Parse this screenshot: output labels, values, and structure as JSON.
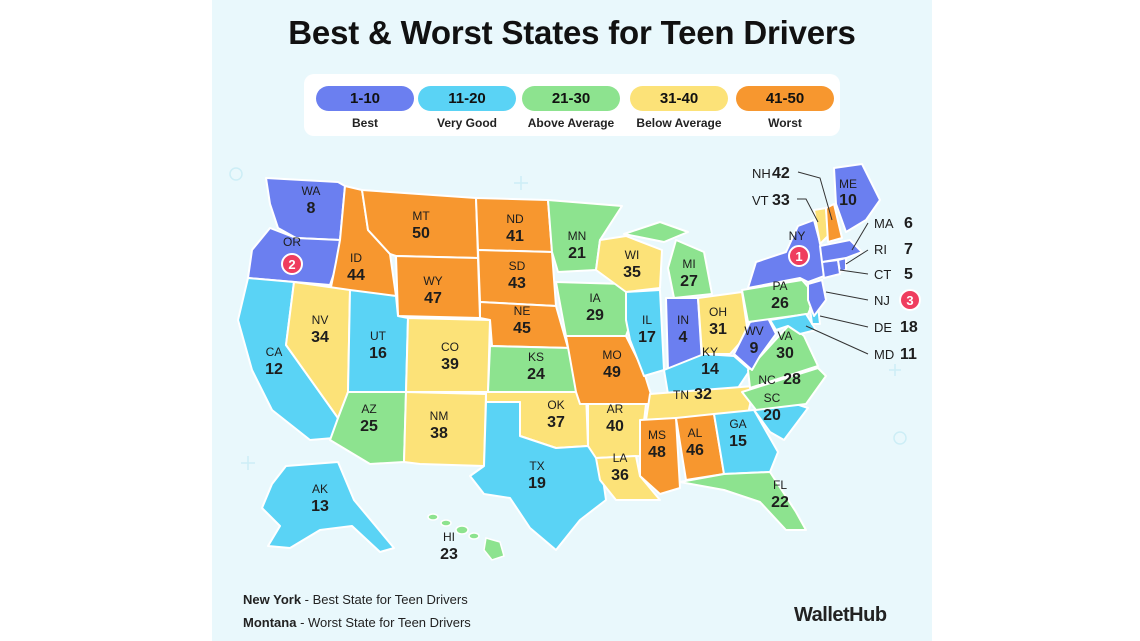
{
  "title": "Best & Worst States for Teen Drivers",
  "colors": {
    "r1": "#6b7ff0",
    "r2": "#5ad3f5",
    "r3": "#8de38f",
    "r4": "#fce278",
    "r5": "#f7972f",
    "badge": "#ef3d5e",
    "background": "#e9f8fc"
  },
  "legend": [
    {
      "range": "1-10",
      "label": "Best",
      "color": "#6b7ff0"
    },
    {
      "range": "11-20",
      "label": "Very Good",
      "color": "#5ad3f5"
    },
    {
      "range": "21-30",
      "label": "Above Average",
      "color": "#8de38f"
    },
    {
      "range": "31-40",
      "label": "Below Average",
      "color": "#fce278"
    },
    {
      "range": "41-50",
      "label": "Worst",
      "color": "#f7972f"
    }
  ],
  "states": [
    {
      "abbr": "WA",
      "rank": "8"
    },
    {
      "abbr": "OR",
      "rank": "2"
    },
    {
      "abbr": "CA",
      "rank": "12"
    },
    {
      "abbr": "ID",
      "rank": "44"
    },
    {
      "abbr": "NV",
      "rank": "34"
    },
    {
      "abbr": "MT",
      "rank": "50"
    },
    {
      "abbr": "WY",
      "rank": "47"
    },
    {
      "abbr": "UT",
      "rank": "16"
    },
    {
      "abbr": "AZ",
      "rank": "25"
    },
    {
      "abbr": "CO",
      "rank": "39"
    },
    {
      "abbr": "NM",
      "rank": "38"
    },
    {
      "abbr": "ND",
      "rank": "41"
    },
    {
      "abbr": "SD",
      "rank": "43"
    },
    {
      "abbr": "NE",
      "rank": "45"
    },
    {
      "abbr": "KS",
      "rank": "24"
    },
    {
      "abbr": "OK",
      "rank": "37"
    },
    {
      "abbr": "TX",
      "rank": "19"
    },
    {
      "abbr": "MN",
      "rank": "21"
    },
    {
      "abbr": "IA",
      "rank": "29"
    },
    {
      "abbr": "MO",
      "rank": "49"
    },
    {
      "abbr": "AR",
      "rank": "40"
    },
    {
      "abbr": "LA",
      "rank": "36"
    },
    {
      "abbr": "WI",
      "rank": "35"
    },
    {
      "abbr": "IL",
      "rank": "17"
    },
    {
      "abbr": "MI",
      "rank": "27"
    },
    {
      "abbr": "IN",
      "rank": "4"
    },
    {
      "abbr": "OH",
      "rank": "31"
    },
    {
      "abbr": "KY",
      "rank": "14"
    },
    {
      "abbr": "TN",
      "rank": "32"
    },
    {
      "abbr": "MS",
      "rank": "48"
    },
    {
      "abbr": "AL",
      "rank": "46"
    },
    {
      "abbr": "GA",
      "rank": "15"
    },
    {
      "abbr": "FL",
      "rank": "22"
    },
    {
      "abbr": "SC",
      "rank": "20"
    },
    {
      "abbr": "NC",
      "rank": "28"
    },
    {
      "abbr": "VA",
      "rank": "30"
    },
    {
      "abbr": "WV",
      "rank": "9"
    },
    {
      "abbr": "PA",
      "rank": "26"
    },
    {
      "abbr": "NY",
      "rank": "1"
    },
    {
      "abbr": "ME",
      "rank": "10"
    },
    {
      "abbr": "AK",
      "rank": "13"
    },
    {
      "abbr": "HI",
      "rank": "23"
    }
  ],
  "small_states": [
    {
      "abbr": "NH",
      "rank": "42"
    },
    {
      "abbr": "VT",
      "rank": "33"
    },
    {
      "abbr": "MA",
      "rank": "6"
    },
    {
      "abbr": "RI",
      "rank": "7"
    },
    {
      "abbr": "CT",
      "rank": "5"
    },
    {
      "abbr": "NJ",
      "rank": "3"
    },
    {
      "abbr": "DE",
      "rank": "18"
    },
    {
      "abbr": "MD",
      "rank": "11"
    }
  ],
  "badges": [
    "1",
    "2",
    "3"
  ],
  "footnotes": [
    {
      "state": "New York",
      "text": " - Best State for Teen Drivers"
    },
    {
      "state": "Montana",
      "text": " - Worst State for Teen Drivers"
    }
  ],
  "brand": "WalletHub"
}
